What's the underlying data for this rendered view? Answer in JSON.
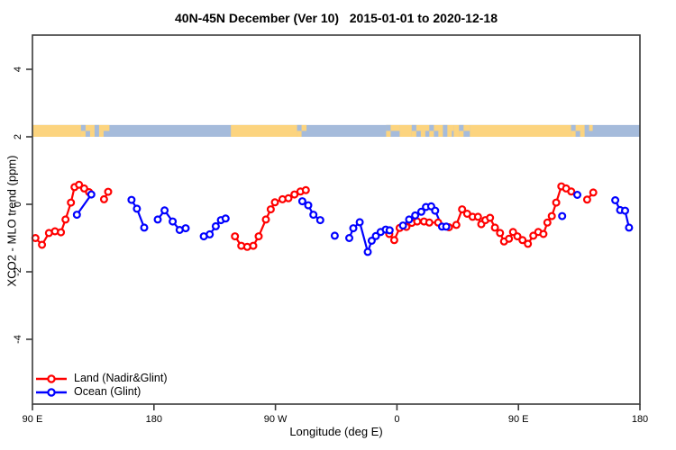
{
  "title": "40N-45N December (Ver 10)   2015-01-01 to 2020-12-18",
  "legend": {
    "items": [
      {
        "label": "Land (Nadir&Glint)",
        "color": "#ff0000"
      },
      {
        "label": "Ocean (Glint)",
        "color": "#0000ff"
      }
    ]
  },
  "chart_data": {
    "type": "line",
    "title": "40N-45N December (Ver 10)   2015-01-01 to 2020-12-18",
    "xlabel": "Longitude (deg E)",
    "ylabel": "XCO2 - MLO trend (ppm)",
    "xlim": [
      90,
      540
    ],
    "ylim_ticks": [
      -4,
      4
    ],
    "grid": false,
    "x_ticks": [
      {
        "value": 90,
        "label": "90 E"
      },
      {
        "value": 180,
        "label": "180"
      },
      {
        "value": 270,
        "label": "90 W"
      },
      {
        "value": 360,
        "label": "0"
      },
      {
        "value": 450,
        "label": "90 E"
      },
      {
        "value": 540,
        "label": "180"
      }
    ],
    "y_ticks": [
      {
        "value": -4,
        "label": "-4"
      },
      {
        "value": -2,
        "label": "-2"
      },
      {
        "value": 0,
        "label": "0"
      },
      {
        "value": 2,
        "label": "2"
      },
      {
        "value": 4,
        "label": "4"
      }
    ],
    "map_band": {
      "description": "coastline strip for 40N-45N latitude band",
      "value_range_ppm": [
        2.0,
        2.35
      ],
      "land_color": "#fcd47f",
      "ocean_color": "#a5bbdb",
      "segments": [
        {
          "from": 90,
          "to": 126,
          "type": "land"
        },
        {
          "from": 126,
          "to": 147,
          "type": "coast"
        },
        {
          "from": 147,
          "to": 237,
          "type": "ocean"
        },
        {
          "from": 237,
          "to": 286,
          "type": "land"
        },
        {
          "from": 286,
          "to": 293,
          "type": "coast"
        },
        {
          "from": 293,
          "to": 352,
          "type": "ocean"
        },
        {
          "from": 352,
          "to": 362,
          "type": "coast"
        },
        {
          "from": 362,
          "to": 371,
          "type": "land"
        },
        {
          "from": 371,
          "to": 384,
          "type": "coast"
        },
        {
          "from": 384,
          "to": 402,
          "type": "coast"
        },
        {
          "from": 402,
          "to": 406,
          "type": "land"
        },
        {
          "from": 406,
          "to": 414,
          "type": "coast"
        },
        {
          "from": 414,
          "to": 489,
          "type": "land"
        },
        {
          "from": 489,
          "to": 505,
          "type": "coast"
        },
        {
          "from": 505,
          "to": 540,
          "type": "ocean"
        }
      ]
    },
    "series": [
      {
        "name": "Land (Nadir&Glint)",
        "color": "#ff0000",
        "marker": "open-circle",
        "chains": [
          [
            [
              92.2,
              -1.0
            ],
            [
              97.1,
              -1.2
            ],
            [
              102.2,
              -0.85
            ],
            [
              106.7,
              -0.8
            ],
            [
              111.1,
              -0.83
            ],
            [
              114.5,
              -0.45
            ],
            [
              118.5,
              0.05
            ],
            [
              121.2,
              0.51
            ],
            [
              124.5,
              0.58
            ],
            [
              128.3,
              0.47
            ],
            [
              131.9,
              0.36
            ]
          ],
          [
            [
              143.0,
              0.15
            ],
            [
              146.1,
              0.37
            ]
          ],
          [
            [
              240.0,
              -0.95
            ],
            [
              244.7,
              -1.23
            ],
            [
              249.1,
              -1.26
            ],
            [
              253.6,
              -1.23
            ],
            [
              257.6,
              -0.95
            ],
            [
              262.9,
              -0.45
            ],
            [
              266.5,
              -0.15
            ],
            [
              269.6,
              0.06
            ],
            [
              275.2,
              0.15
            ],
            [
              279.6,
              0.18
            ],
            [
              284.1,
              0.29
            ],
            [
              288.5,
              0.38
            ],
            [
              292.5,
              0.42
            ]
          ],
          [
            [
              354.3,
              -0.88
            ],
            [
              358.0,
              -1.06
            ],
            [
              362.0,
              -0.7
            ],
            [
              367.0,
              -0.67
            ],
            [
              371.0,
              -0.55
            ],
            [
              375.0,
              -0.51
            ],
            [
              380.0,
              -0.51
            ],
            [
              384.0,
              -0.54
            ],
            [
              390.5,
              -0.54
            ],
            [
              398.5,
              -0.68
            ],
            [
              404.0,
              -0.61
            ],
            [
              408.3,
              -0.15
            ],
            [
              412.0,
              -0.28
            ],
            [
              416.0,
              -0.37
            ],
            [
              420.0,
              -0.37
            ],
            [
              422.5,
              -0.59
            ],
            [
              425.5,
              -0.47
            ],
            [
              429.0,
              -0.4
            ],
            [
              432.6,
              -0.69
            ],
            [
              436.4,
              -0.85
            ],
            [
              439.3,
              -1.1
            ],
            [
              443.0,
              -1.02
            ],
            [
              446.0,
              -0.82
            ],
            [
              449.2,
              -0.95
            ],
            [
              453.0,
              -1.06
            ],
            [
              457.0,
              -1.17
            ],
            [
              461.0,
              -0.93
            ],
            [
              464.7,
              -0.82
            ],
            [
              468.5,
              -0.88
            ],
            [
              471.4,
              -0.54
            ],
            [
              474.7,
              -0.35
            ],
            [
              478.0,
              0.05
            ],
            [
              481.8,
              0.53
            ],
            [
              485.3,
              0.47
            ],
            [
              489.1,
              0.38
            ]
          ],
          [
            [
              500.9,
              0.14
            ],
            [
              505.4,
              0.35
            ]
          ]
        ]
      },
      {
        "name": "Ocean (Glint)",
        "color": "#0000ff",
        "marker": "open-circle",
        "chains": [
          [
            [
              122.9,
              -0.31
            ],
            [
              133.6,
              0.29
            ]
          ],
          [
            [
              163.4,
              0.13
            ],
            [
              167.4,
              -0.13
            ],
            [
              172.8,
              -0.69
            ]
          ],
          [
            [
              182.8,
              -0.45
            ],
            [
              187.9,
              -0.18
            ],
            [
              193.9,
              -0.51
            ],
            [
              199.0,
              -0.76
            ],
            [
              203.5,
              -0.71
            ]
          ],
          [
            [
              216.9,
              -0.95
            ],
            [
              221.3,
              -0.89
            ],
            [
              225.8,
              -0.65
            ],
            [
              229.6,
              -0.47
            ],
            [
              233.1,
              -0.42
            ]
          ],
          [
            [
              289.9,
              0.09
            ],
            [
              294.3,
              -0.03
            ],
            [
              298.1,
              -0.31
            ],
            [
              303.2,
              -0.47
            ]
          ],
          [
            [
              313.9,
              -0.93
            ]
          ],
          [
            [
              324.7,
              -1.0
            ],
            [
              327.7,
              -0.71
            ],
            [
              332.4,
              -0.53
            ],
            [
              338.4,
              -1.41
            ],
            [
              341.3,
              -1.08
            ],
            [
              344.4,
              -0.94
            ],
            [
              347.9,
              -0.82
            ],
            [
              351.7,
              -0.75
            ],
            [
              354.6,
              -0.77
            ]
          ],
          [
            [
              364.5,
              -0.63
            ],
            [
              369.0,
              -0.45
            ],
            [
              373.5,
              -0.33
            ],
            [
              378.0,
              -0.22
            ],
            [
              381.5,
              -0.08
            ],
            [
              385.4,
              -0.06
            ],
            [
              388.3,
              -0.19
            ],
            [
              393.4,
              -0.66
            ],
            [
              396.5,
              -0.66
            ]
          ],
          [
            [
              482.4,
              -0.35
            ]
          ],
          [
            [
              493.6,
              0.28
            ]
          ],
          [
            [
              521.7,
              0.12
            ],
            [
              525.3,
              -0.17
            ],
            [
              529.0,
              -0.19
            ],
            [
              531.9,
              -0.69
            ]
          ]
        ]
      }
    ]
  }
}
